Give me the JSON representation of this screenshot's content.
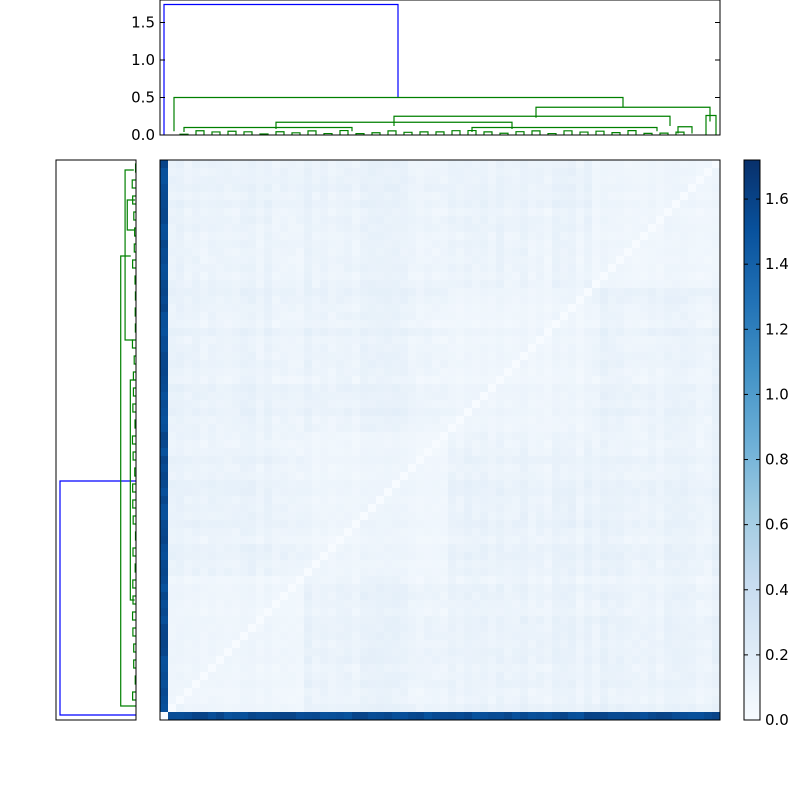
{
  "chart_data": [
    {
      "type": "dendrogram",
      "orientation": "top",
      "n_leaves": 70,
      "ylim": [
        0,
        1.8
      ],
      "yticks": [
        0.0,
        0.5,
        1.0,
        1.5
      ],
      "ytick_labels": [
        "0.0",
        "0.5",
        "1.0",
        "1.5"
      ],
      "link_colors": {
        "root": "#0000ff",
        "cluster": "#008000"
      },
      "merges": [
        {
          "heights": [
            1.74,
            0.0
          ],
          "color": "root"
        },
        {
          "heights": [
            0.5,
            0.05
          ],
          "color": "cluster"
        },
        {
          "heights": [
            0.37,
            0.23
          ],
          "color": "cluster"
        },
        {
          "heights": [
            0.25,
            0.18
          ],
          "color": "cluster"
        }
      ]
    },
    {
      "type": "dendrogram",
      "orientation": "left",
      "n_leaves": 70,
      "link_colors": {
        "root": "#0000ff",
        "cluster": "#008000"
      },
      "merges": [
        {
          "heights": [
            1.74,
            0.0
          ],
          "color": "root"
        },
        {
          "heights": [
            0.5,
            0.05
          ],
          "color": "cluster"
        }
      ]
    },
    {
      "type": "heatmap",
      "rows": 70,
      "cols": 70,
      "colormap": "Blues",
      "vmin": 0.0,
      "vmax": 1.72,
      "diagonal": 0.0,
      "outlier_index": 0,
      "outlier_value": 1.6,
      "typical_range": [
        0.03,
        0.18
      ],
      "colorbar_ticks": [
        0.0,
        0.2,
        0.4,
        0.6,
        0.8,
        1.0,
        1.2,
        1.4,
        1.6
      ],
      "colorbar_tick_labels": [
        "0.0",
        "0.2",
        "0.4",
        "0.6",
        "0.8",
        "1.0",
        "1.2",
        "1.4",
        "1.6"
      ]
    }
  ]
}
